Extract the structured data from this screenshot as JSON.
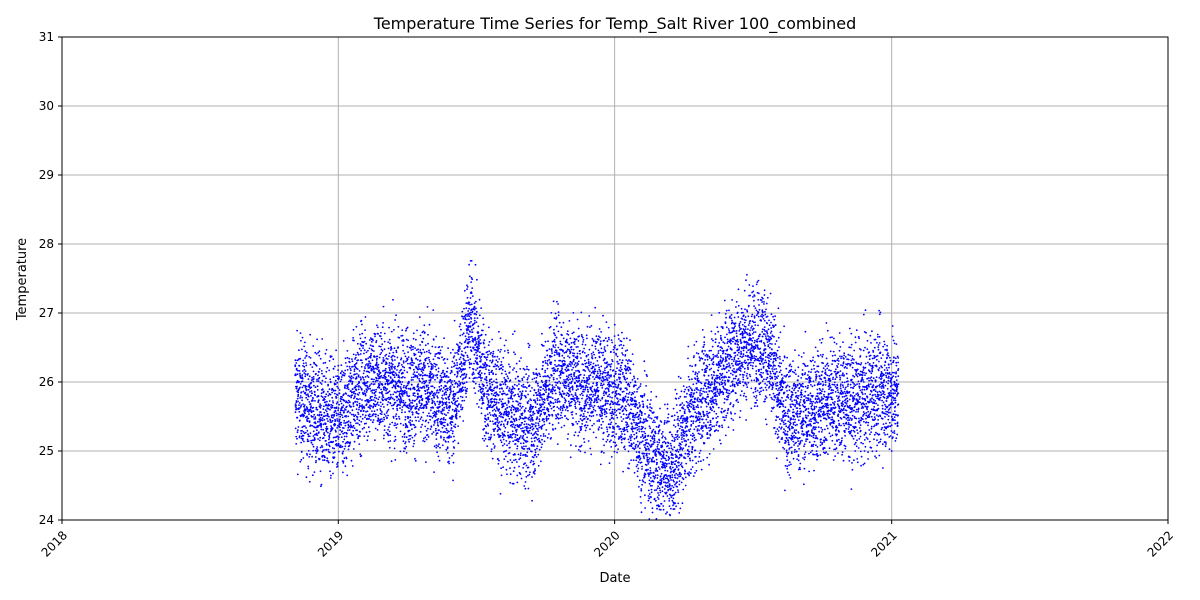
{
  "chart_data": {
    "type": "scatter",
    "title": "Temperature Time Series for Temp_Salt River 100_combined",
    "xlabel": "Date",
    "ylabel": "Temperature",
    "xlim": [
      "2018-01-01",
      "2022-01-01"
    ],
    "ylim": [
      24,
      31
    ],
    "x_ticks": [
      "2018",
      "2019",
      "2020",
      "2021",
      "2022"
    ],
    "y_ticks": [
      "24",
      "25",
      "26",
      "27",
      "28",
      "29",
      "30",
      "31"
    ],
    "grid": true,
    "marker": "dot",
    "marker_color": "#0000ff",
    "series": [
      {
        "description_points": [
          {
            "x": "2018-11-05",
            "y": 25.8
          },
          {
            "x": "2018-12-01",
            "y": 25.6
          },
          {
            "x": "2019-01-01",
            "y": 25.4
          },
          {
            "x": "2019-02-01",
            "y": 26.0
          },
          {
            "x": "2019-03-01",
            "y": 26.0
          },
          {
            "x": "2019-04-01",
            "y": 25.9
          },
          {
            "x": "2019-05-01",
            "y": 25.9
          },
          {
            "x": "2019-06-01",
            "y": 25.6
          },
          {
            "x": "2019-06-25",
            "y": 26.9
          },
          {
            "x": "2019-07-15",
            "y": 25.9
          },
          {
            "x": "2019-08-15",
            "y": 25.5
          },
          {
            "x": "2019-09-15",
            "y": 25.4
          },
          {
            "x": "2019-10-15",
            "y": 26.2
          },
          {
            "x": "2019-11-15",
            "y": 26.0
          },
          {
            "x": "2019-12-15",
            "y": 25.9
          },
          {
            "x": "2020-01-15",
            "y": 25.8
          },
          {
            "x": "2020-02-15",
            "y": 25.0
          },
          {
            "x": "2020-03-15",
            "y": 24.7
          },
          {
            "x": "2020-04-15",
            "y": 25.6
          },
          {
            "x": "2020-05-15",
            "y": 26.0
          },
          {
            "x": "2020-06-15",
            "y": 26.5
          },
          {
            "x": "2020-07-15",
            "y": 26.6
          },
          {
            "x": "2020-08-15",
            "y": 25.5
          },
          {
            "x": "2020-09-15",
            "y": 25.6
          },
          {
            "x": "2020-10-15",
            "y": 25.8
          },
          {
            "x": "2020-11-15",
            "y": 25.7
          },
          {
            "x": "2020-12-15",
            "y": 25.9
          },
          {
            "x": "2021-01-10",
            "y": 25.8
          }
        ]
      }
    ]
  }
}
